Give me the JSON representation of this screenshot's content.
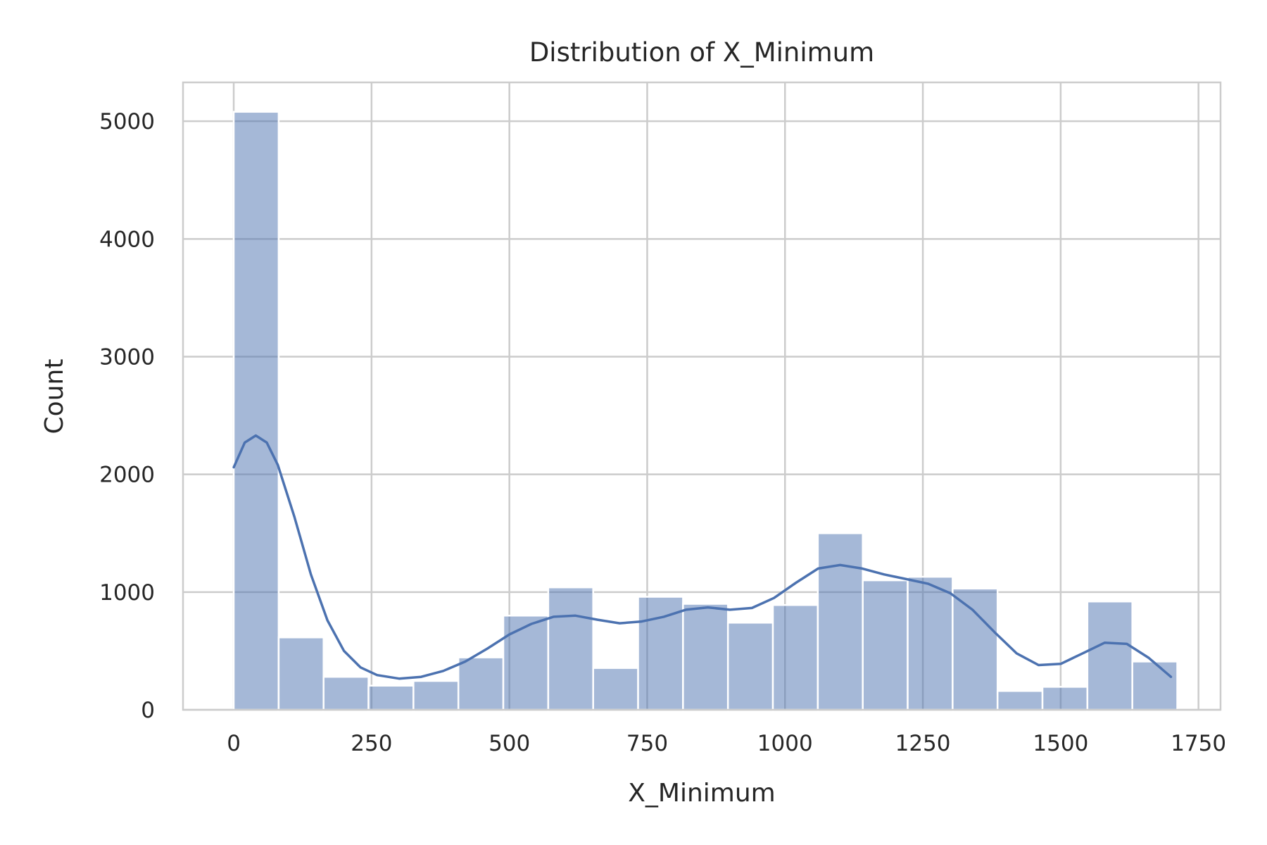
{
  "chart_data": {
    "type": "bar",
    "subtype": "histogram",
    "title": "Distribution of X_Minimum",
    "xlabel": "X_Minimum",
    "ylabel": "Count",
    "xlim": [
      -92,
      1790
    ],
    "ylim": [
      0,
      5330
    ],
    "xticks": [
      0,
      250,
      500,
      750,
      1000,
      1250,
      1500,
      1750
    ],
    "yticks": [
      0,
      1000,
      2000,
      3000,
      4000,
      5000
    ],
    "grid": true,
    "bar_color": "#4c72b0",
    "bar_opacity": 0.5,
    "kde_color": "#4c72b0",
    "bins": [
      {
        "x0": 0,
        "x1": 81.5,
        "count": 5080
      },
      {
        "x0": 81.5,
        "x1": 163,
        "count": 615
      },
      {
        "x0": 163,
        "x1": 244.5,
        "count": 280
      },
      {
        "x0": 244.5,
        "x1": 326,
        "count": 205
      },
      {
        "x0": 326,
        "x1": 407.5,
        "count": 245
      },
      {
        "x0": 407.5,
        "x1": 489,
        "count": 445
      },
      {
        "x0": 489,
        "x1": 570.5,
        "count": 800
      },
      {
        "x0": 570.5,
        "x1": 652,
        "count": 1040
      },
      {
        "x0": 652,
        "x1": 733.5,
        "count": 355
      },
      {
        "x0": 733.5,
        "x1": 815,
        "count": 960
      },
      {
        "x0": 815,
        "x1": 896.5,
        "count": 900
      },
      {
        "x0": 896.5,
        "x1": 978,
        "count": 740
      },
      {
        "x0": 978,
        "x1": 1059.5,
        "count": 890
      },
      {
        "x0": 1059.5,
        "x1": 1141,
        "count": 1500
      },
      {
        "x0": 1141,
        "x1": 1222.5,
        "count": 1100
      },
      {
        "x0": 1222.5,
        "x1": 1304,
        "count": 1130
      },
      {
        "x0": 1304,
        "x1": 1385.5,
        "count": 1030
      },
      {
        "x0": 1385.5,
        "x1": 1467,
        "count": 160
      },
      {
        "x0": 1467,
        "x1": 1548.5,
        "count": 195
      },
      {
        "x0": 1548.5,
        "x1": 1630,
        "count": 920
      },
      {
        "x0": 1630,
        "x1": 1711.5,
        "count": 410
      }
    ],
    "kde": [
      [
        0,
        2060
      ],
      [
        20,
        2270
      ],
      [
        40,
        2330
      ],
      [
        60,
        2270
      ],
      [
        80,
        2080
      ],
      [
        110,
        1640
      ],
      [
        140,
        1150
      ],
      [
        170,
        760
      ],
      [
        200,
        500
      ],
      [
        230,
        360
      ],
      [
        260,
        295
      ],
      [
        300,
        265
      ],
      [
        340,
        280
      ],
      [
        380,
        330
      ],
      [
        420,
        410
      ],
      [
        460,
        520
      ],
      [
        500,
        640
      ],
      [
        540,
        730
      ],
      [
        580,
        790
      ],
      [
        620,
        800
      ],
      [
        660,
        765
      ],
      [
        700,
        735
      ],
      [
        740,
        750
      ],
      [
        780,
        790
      ],
      [
        820,
        850
      ],
      [
        860,
        870
      ],
      [
        900,
        850
      ],
      [
        940,
        865
      ],
      [
        980,
        950
      ],
      [
        1020,
        1080
      ],
      [
        1060,
        1200
      ],
      [
        1100,
        1230
      ],
      [
        1140,
        1200
      ],
      [
        1180,
        1150
      ],
      [
        1220,
        1110
      ],
      [
        1260,
        1070
      ],
      [
        1300,
        990
      ],
      [
        1340,
        850
      ],
      [
        1380,
        660
      ],
      [
        1420,
        480
      ],
      [
        1460,
        380
      ],
      [
        1500,
        390
      ],
      [
        1540,
        480
      ],
      [
        1580,
        570
      ],
      [
        1620,
        560
      ],
      [
        1660,
        440
      ],
      [
        1700,
        280
      ]
    ]
  }
}
